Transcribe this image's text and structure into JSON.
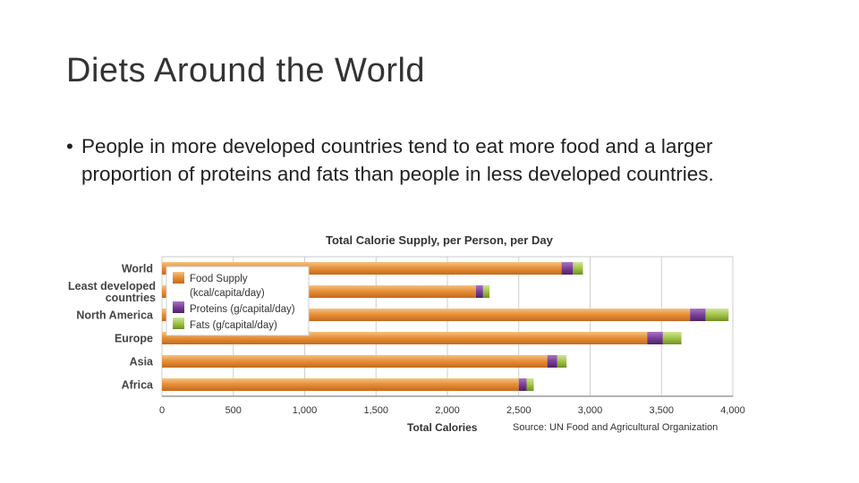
{
  "slide": {
    "title": "Diets Around the World",
    "bullet_symbol": "•",
    "bullet_text": "People in more developed countries tend to eat more food and a larger proportion of proteins and fats than people in less developed countries."
  },
  "chart_data": {
    "type": "bar",
    "orientation": "horizontal",
    "stacked": true,
    "title": "Total Calorie Supply, per Person, per Day",
    "xlabel": "Total Calories",
    "source": "Source: UN Food and Agricultural Organization",
    "xlim": [
      0,
      4000
    ],
    "xticks": [
      "0",
      "500",
      "1,000",
      "1,500",
      "2,000",
      "2,500",
      "3,000",
      "3,500",
      "4,000"
    ],
    "xtick_values": [
      0,
      500,
      1000,
      1500,
      2000,
      2500,
      3000,
      3500,
      4000
    ],
    "categories": [
      {
        "lines": [
          "World"
        ]
      },
      {
        "lines": [
          "Least developed",
          "countries"
        ]
      },
      {
        "lines": [
          "North America"
        ]
      },
      {
        "lines": [
          "Europe"
        ]
      },
      {
        "lines": [
          "Asia"
        ]
      },
      {
        "lines": [
          "Africa"
        ]
      }
    ],
    "series": [
      {
        "name": "Food Supply (kcal/capita/day)",
        "legend_lines": [
          "Food Supply",
          "(kcal/capita/day)"
        ],
        "color": "#e8913a",
        "values": [
          2800,
          2200,
          3700,
          3400,
          2700,
          2500
        ]
      },
      {
        "name": "Proteins (g/capital/day)",
        "legend_lines": [
          "Proteins (g/capital/day)"
        ],
        "color": "#7b3f98",
        "values": [
          80,
          50,
          110,
          110,
          70,
          55
        ]
      },
      {
        "name": "Fats (g/capital/day)",
        "legend_lines": [
          "Fats (g/capital/day)"
        ],
        "color": "#a2c449",
        "values": [
          70,
          45,
          160,
          130,
          65,
          50
        ]
      }
    ],
    "legend_position": "top-left",
    "grid": true
  }
}
